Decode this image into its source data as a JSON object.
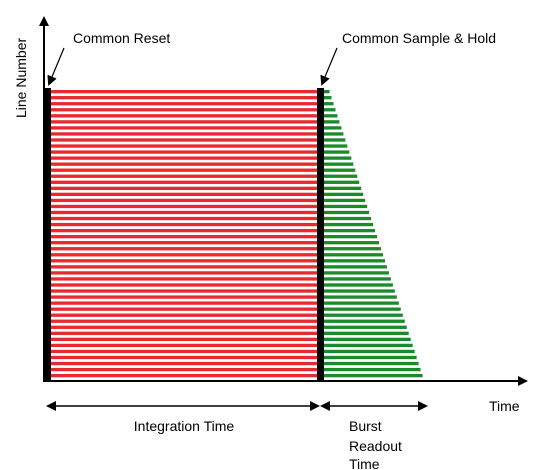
{
  "diagram": {
    "y_axis_label": "Line Number",
    "x_axis_label": "Time",
    "annotations": {
      "common_reset": "Common Reset",
      "common_sample_hold": "Common Sample & Hold"
    },
    "intervals": {
      "integration": "Integration Time",
      "burst_line1": "Burst",
      "burst_line2": "Readout",
      "burst_line3": "Time"
    },
    "colors": {
      "integration_stripe": "#e8292f",
      "readout_stripe": "#1a8a2a",
      "reset_bar": "#000000",
      "axis": "#000000"
    },
    "stripe_count": 48
  }
}
